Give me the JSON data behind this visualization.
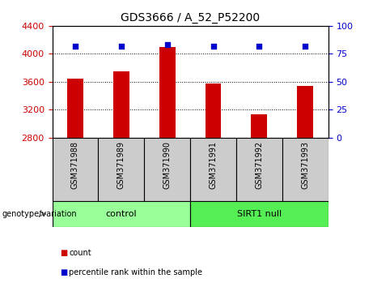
{
  "title": "GDS3666 / A_52_P52200",
  "samples": [
    "GSM371988",
    "GSM371989",
    "GSM371990",
    "GSM371991",
    "GSM371992",
    "GSM371993"
  ],
  "counts": [
    3650,
    3750,
    4100,
    3580,
    3130,
    3540
  ],
  "percentile_ranks": [
    82,
    82,
    83,
    82,
    82,
    82
  ],
  "ylim_left": [
    2800,
    4400
  ],
  "ylim_right": [
    0,
    100
  ],
  "yticks_left": [
    2800,
    3200,
    3600,
    4000,
    4400
  ],
  "yticks_right": [
    0,
    25,
    50,
    75,
    100
  ],
  "bar_color": "#cc0000",
  "dot_color": "#0000cc",
  "groups": [
    {
      "label": "control",
      "indices": [
        0,
        1,
        2
      ],
      "color": "#99ff99"
    },
    {
      "label": "SIRT1 null",
      "indices": [
        3,
        4,
        5
      ],
      "color": "#55ee55"
    }
  ],
  "genotype_label": "genotype/variation",
  "legend_items": [
    {
      "label": "count",
      "color": "#cc0000"
    },
    {
      "label": "percentile rank within the sample",
      "color": "#0000cc"
    }
  ],
  "left_axis_color": "#cc0000",
  "right_axis_color": "#0000cc",
  "background_color": "#ffffff",
  "plot_bg": "#ffffff",
  "sample_box_color": "#cccccc",
  "bar_width": 0.35
}
